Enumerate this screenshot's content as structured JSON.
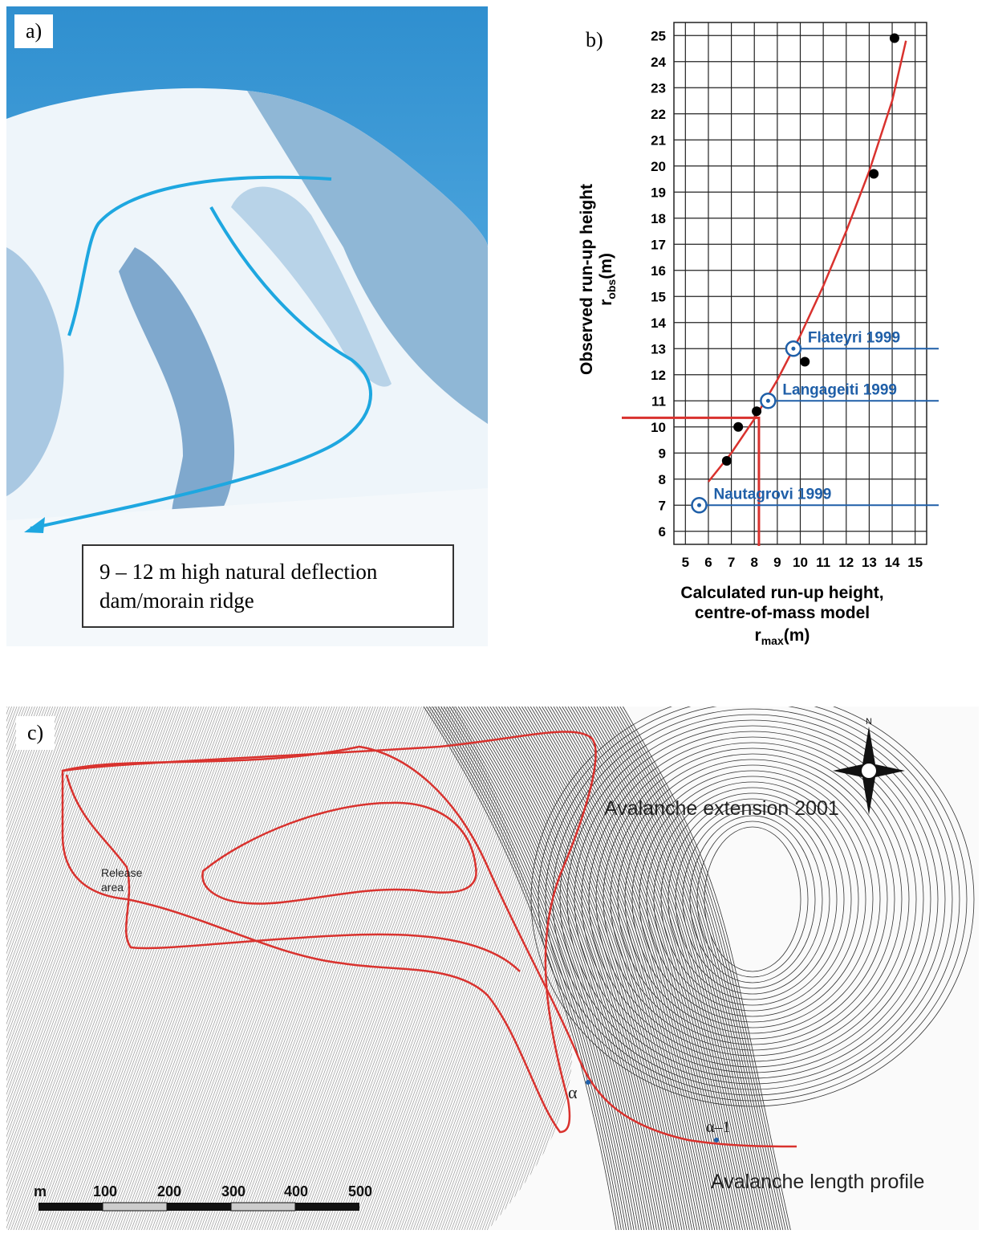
{
  "panel_a": {
    "label": "a)",
    "caption_line1": "9 – 12 m high natural deflection",
    "caption_line2": "dam/morain ridge",
    "colors": {
      "arrow": "#1ea7e0"
    }
  },
  "panel_b": {
    "label": "b)"
  },
  "chart_data": {
    "type": "scatter",
    "xlabel_line1": "Calculated run-up height,",
    "xlabel_line2": "centre-of-mass model",
    "xlabel_symbol": "r",
    "xlabel_sub": "max",
    "xlabel_unit": "(m)",
    "ylabel_line1": "Observed run-up height",
    "ylabel_symbol": "r",
    "ylabel_sub": "obs",
    "ylabel_unit": "(m)",
    "xlim": [
      4.5,
      15.5
    ],
    "ylim": [
      5.5,
      25.5
    ],
    "xticks": [
      5,
      6,
      7,
      8,
      9,
      10,
      11,
      12,
      13,
      14,
      15
    ],
    "yticks": [
      6,
      7,
      8,
      9,
      10,
      11,
      12,
      13,
      14,
      15,
      16,
      17,
      18,
      19,
      20,
      21,
      22,
      23,
      24,
      25
    ],
    "grid": true,
    "points": [
      {
        "x": 6.8,
        "y": 8.7
      },
      {
        "x": 7.3,
        "y": 10.0
      },
      {
        "x": 8.1,
        "y": 10.6
      },
      {
        "x": 10.2,
        "y": 12.5
      },
      {
        "x": 13.2,
        "y": 19.7
      },
      {
        "x": 14.1,
        "y": 24.9
      }
    ],
    "named_points": [
      {
        "name": "Flateyri 1999",
        "x": 9.7,
        "y": 13.0
      },
      {
        "name": "Langageiti 1999",
        "x": 8.6,
        "y": 11.0
      },
      {
        "name": "Nautagrovi 1999",
        "x": 5.6,
        "y": 7.0
      }
    ],
    "fit_curve": [
      {
        "x": 6.0,
        "y": 7.9
      },
      {
        "x": 7.0,
        "y": 9.0
      },
      {
        "x": 8.0,
        "y": 10.3
      },
      {
        "x": 9.0,
        "y": 11.8
      },
      {
        "x": 10.0,
        "y": 13.5
      },
      {
        "x": 11.0,
        "y": 15.4
      },
      {
        "x": 12.0,
        "y": 17.5
      },
      {
        "x": 13.0,
        "y": 19.8
      },
      {
        "x": 14.0,
        "y": 22.5
      },
      {
        "x": 14.6,
        "y": 24.8
      }
    ],
    "reference_lines": {
      "x": 8.2,
      "y": 10.35
    },
    "colors": {
      "fit": "#d9322e",
      "named": "#1f5fa8",
      "points": "#000000",
      "grid": "#222222"
    }
  },
  "panel_c": {
    "label": "c)",
    "label_extension": "Avalanche extension 2001",
    "label_release_line1": "Release",
    "label_release_line2": "area",
    "label_alpha": "α",
    "label_alpha_minus": "α–1",
    "label_profile": "Avalanche length profile",
    "compass_n": "N",
    "scale_unit": "m",
    "scale_ticks": [
      "100",
      "200",
      "300",
      "400",
      "500"
    ],
    "colors": {
      "outline": "#d9322e",
      "contour": "#333333"
    }
  }
}
